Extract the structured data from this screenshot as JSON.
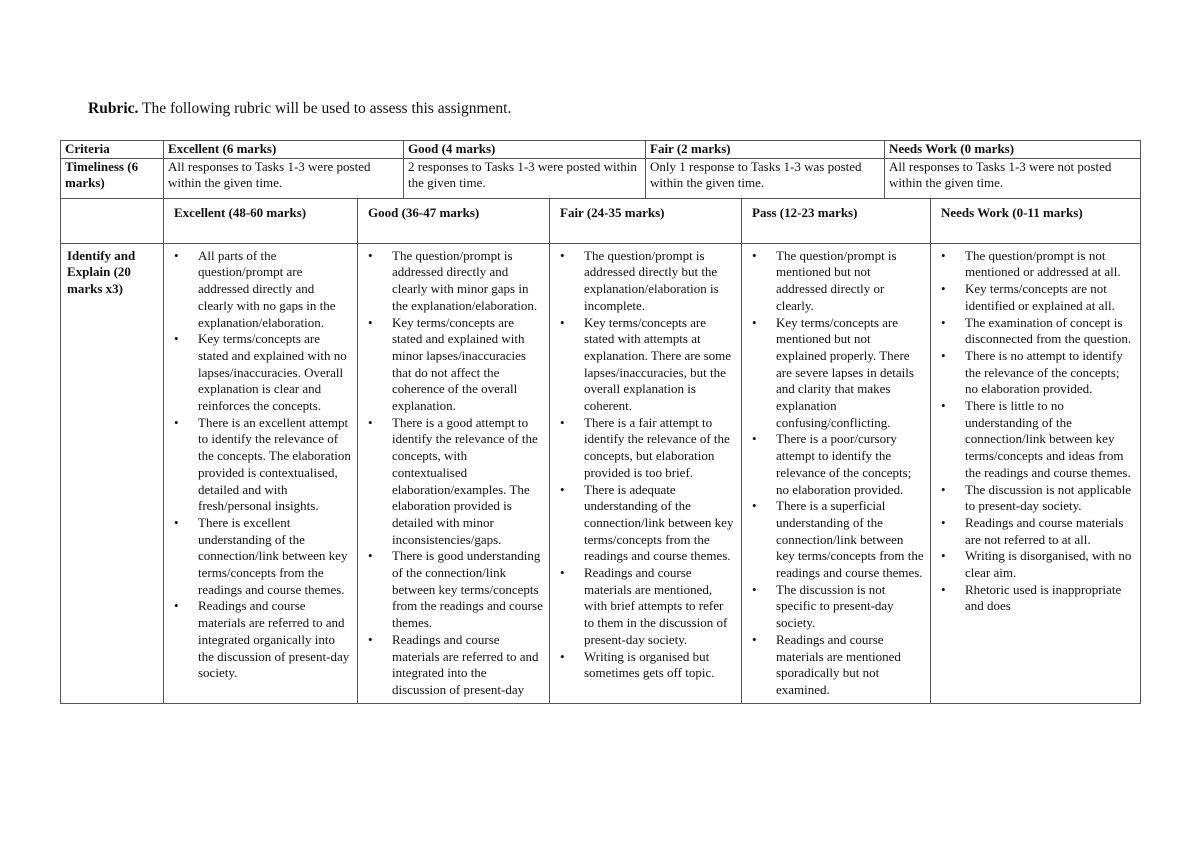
{
  "intro": {
    "bold": "Rubric.",
    "text": " The following rubric will be used to assess this assignment."
  },
  "timeliness": {
    "headers": [
      "Criteria",
      "Excellent (6 marks)",
      "Good (4 marks)",
      "Fair (2 marks)",
      "Needs Work (0 marks)"
    ],
    "criterion": "Timeliness (6 marks)",
    "cells": [
      "All responses to Tasks 1-3 were posted within the given time.",
      "2 responses to Tasks 1-3 were posted within the given time.",
      "Only 1 response to Tasks 1-3 was posted within the given time.",
      "All responses to Tasks 1-3 were not posted within the given time."
    ]
  },
  "identify": {
    "headers": [
      "",
      "Excellent (48-60 marks)",
      "Good (36-47 marks)",
      "Fair (24-35 marks)",
      "Pass (12-23 marks)",
      "Needs Work (0-11 marks)"
    ],
    "criterion": "Identify and Explain (20 marks x3)",
    "columns": [
      [
        "All parts of the question/prompt are addressed directly and clearly with no gaps in the explanation/elaboration.",
        "Key terms/concepts are stated and explained with no lapses/inaccuracies. Overall explanation is clear and reinforces the concepts.",
        "There is an excellent attempt to identify the relevance of the concepts. The elaboration provided is contextualised, detailed and with fresh/personal insights.",
        "There is excellent understanding of the connection/link between key terms/concepts from the readings and course themes.",
        "Readings and course materials are referred to and integrated organically into the discussion of present-day society."
      ],
      [
        "The question/prompt is addressed directly and clearly with minor gaps in the explanation/elaboration.",
        "Key terms/concepts are stated and explained with minor lapses/inaccuracies that do not affect the coherence of the overall explanation.",
        "There is a good attempt to identify the relevance of the concepts, with contextualised elaboration/examples. The elaboration provided is detailed with minor inconsistencies/gaps.",
        "There is good understanding of the connection/link between key terms/concepts from the readings and course themes.",
        "Readings and course materials are referred to and integrated into the discussion of present-day"
      ],
      [
        "The question/prompt is addressed directly but the explanation/elaboration is incomplete.",
        "Key terms/concepts are stated with attempts at explanation. There are some lapses/inaccuracies, but the overall explanation is coherent.",
        "There is a fair attempt to identify the relevance of the concepts, but elaboration provided is too brief.",
        "There is adequate understanding of the connection/link between key terms/concepts from the readings and course themes.",
        "Readings and course materials are mentioned, with brief attempts to refer to them in the discussion of present-day society.",
        "Writing is organised but sometimes gets off topic."
      ],
      [
        "The question/prompt is mentioned but not addressed directly or clearly.",
        "Key terms/concepts are mentioned but not explained properly. There are severe lapses in details and clarity that makes explanation confusing/conflicting.",
        "There is a poor/cursory attempt to identify the relevance of the concepts; no elaboration provided.",
        "There is a superficial understanding of the connection/link between key terms/concepts from the readings and course themes.",
        "The discussion is not specific to present-day society.",
        "Readings and course materials are mentioned sporadically but not examined."
      ],
      [
        "The question/prompt is not mentioned or addressed at all.",
        "Key terms/concepts are not identified or explained at all.",
        "The examination of concept is disconnected from the question.",
        "There is no attempt to identify the relevance of the concepts; no elaboration provided.",
        "There is little to no understanding of the connection/link between key terms/concepts and ideas from the readings and course themes.",
        "The discussion is not applicable to present-day society.",
        "Readings and course materials are not referred to at all.",
        "Writing is disorganised, with no clear aim.",
        "Rhetoric used is inappropriate and does"
      ]
    ]
  }
}
